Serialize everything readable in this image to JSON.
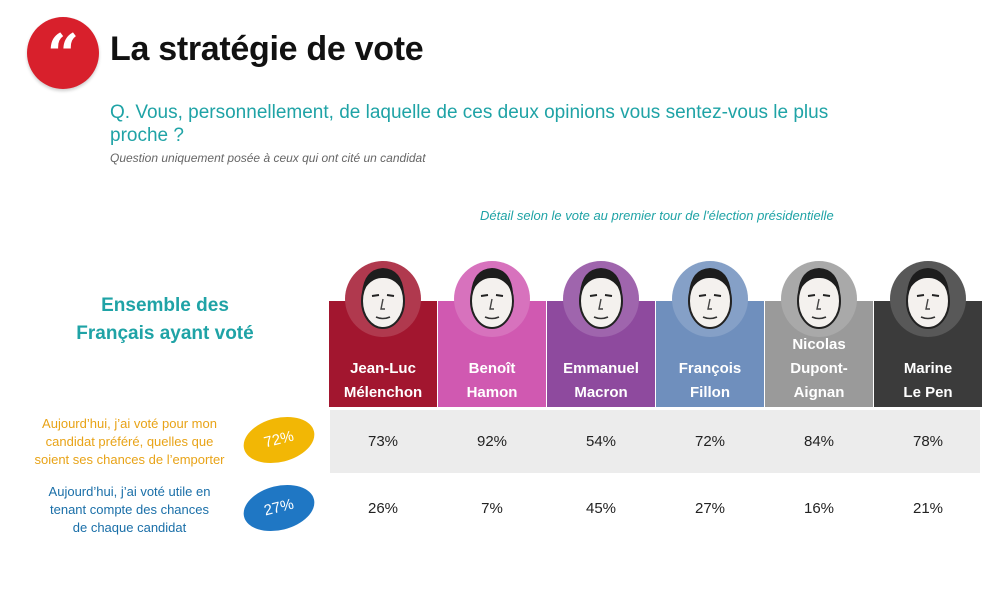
{
  "title": "La stratégie de vote",
  "question": "Q. Vous, personnellement, de laquelle de ces deux opinions vous sentez-vous le plus proche ?",
  "note": "Question uniquement posée à ceux qui ont cité un candidat",
  "detail_label": "Détail selon le vote au premier tour de l'élection présidentielle",
  "ensemble_label_line1": "Ensemble des",
  "ensemble_label_line2": "Français ayant voté",
  "rows": [
    {
      "label_line1": "Aujourd’hui, j’ai voté pour mon",
      "label_line2": "candidat préféré, quelles que",
      "label_line3": "soient ses chances de l’emporter",
      "total": "72%"
    },
    {
      "label_line1": "Aujourd’hui, j’ai voté utile en",
      "label_line2": "tenant compte des chances",
      "label_line3": "de chaque candidat",
      "total": "27%"
    }
  ],
  "candidates": [
    {
      "line1": "Jean-Luc",
      "line2": "Mélenchon",
      "line3": "",
      "color": "#a2162f",
      "v1": "73%",
      "v2": "26%"
    },
    {
      "line1": "Benoît",
      "line2": "Hamon",
      "line3": "",
      "color": "#d059b1",
      "v1": "92%",
      "v2": "7%"
    },
    {
      "line1": "Emmanuel",
      "line2": "Macron",
      "line3": "",
      "color": "#8e4a9e",
      "v1": "54%",
      "v2": "45%"
    },
    {
      "line1": "François",
      "line2": "Fillon",
      "line3": "",
      "color": "#6f8fbd",
      "v1": "72%",
      "v2": "27%"
    },
    {
      "line1": "Nicolas",
      "line2": "Dupont-",
      "line3": "Aignan",
      "color": "#9a9a9a",
      "v1": "84%",
      "v2": "16%"
    },
    {
      "line1": "Marine",
      "line2": "Le Pen",
      "line3": "",
      "color": "#3b3b3b",
      "v1": "78%",
      "v2": "21%"
    }
  ],
  "chart_data": {
    "type": "table",
    "columns": [
      "Ensemble des Français ayant voté",
      "Jean-Luc Mélenchon",
      "Benoît Hamon",
      "Emmanuel Macron",
      "François Fillon",
      "Nicolas Dupont-Aignan",
      "Marine Le Pen"
    ],
    "rows": [
      {
        "name": "Aujourd’hui, j’ai voté pour mon candidat préféré, quelles que soient ses chances de l’emporter",
        "values": [
          72,
          73,
          92,
          54,
          72,
          84,
          78
        ]
      },
      {
        "name": "Aujourd’hui, j’ai voté utile en tenant compte des chances de chaque candidat",
        "values": [
          27,
          26,
          7,
          45,
          27,
          16,
          21
        ]
      }
    ],
    "unit": "%"
  }
}
